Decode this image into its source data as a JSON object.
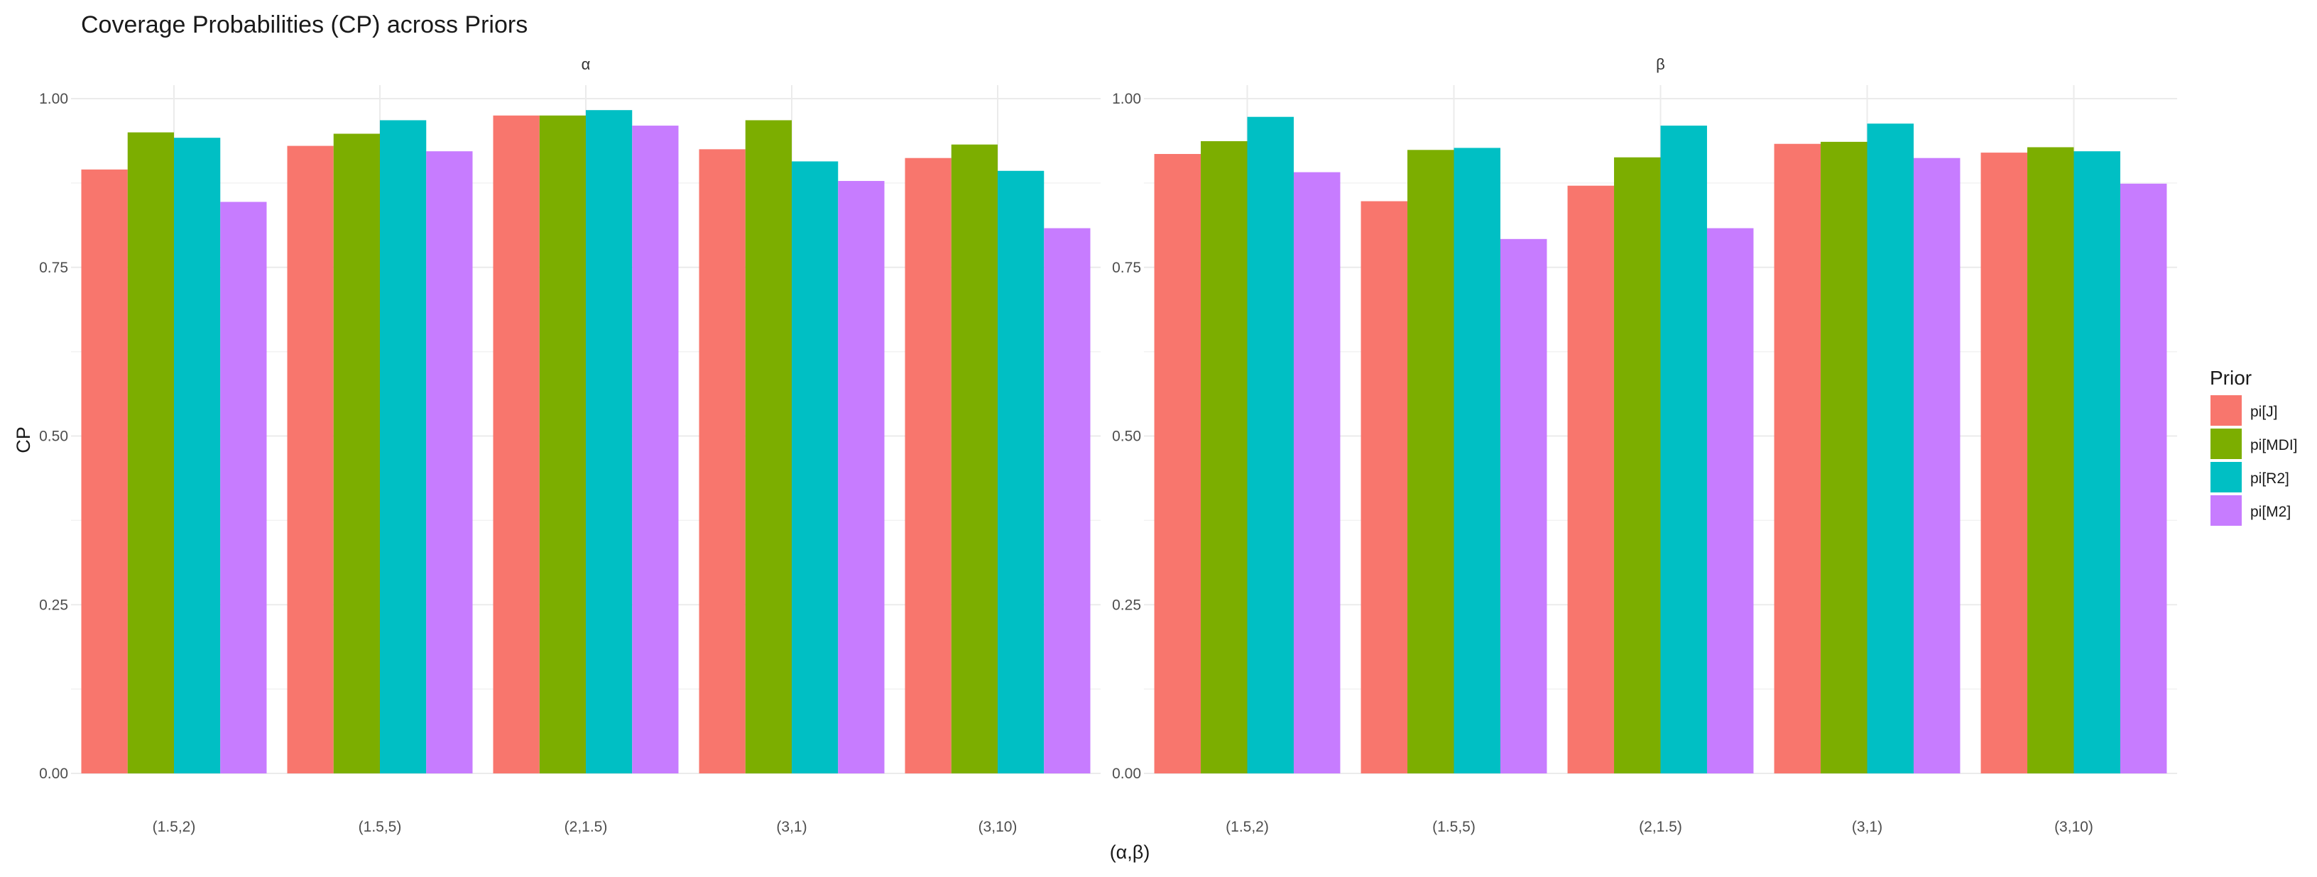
{
  "chart_data": {
    "type": "bar",
    "title": "Coverage Probabilities (CP) across Priors",
    "xlabel": "(α,β)",
    "ylabel": "CP",
    "ylim": [
      0,
      1.02
    ],
    "yticks": [
      "0.00",
      "0.25",
      "0.50",
      "0.75",
      "1.00"
    ],
    "categories": [
      "(1.5,2)",
      "(1.5,5)",
      "(2,1.5)",
      "(3,1)",
      "(3,10)"
    ],
    "legend": {
      "title": "Prior",
      "position": "right",
      "entries": [
        {
          "name": "pi[J]",
          "color": "#F8766D"
        },
        {
          "name": "pi[MDI]",
          "color": "#7CAE00"
        },
        {
          "name": "pi[R2]",
          "color": "#00BFC4"
        },
        {
          "name": "pi[M2]",
          "color": "#C77CFF"
        }
      ]
    },
    "panels": [
      {
        "label": "α",
        "series": [
          {
            "name": "pi[J]",
            "values": [
              0.895,
              0.93,
              0.975,
              0.925,
              0.912
            ]
          },
          {
            "name": "pi[MDI]",
            "values": [
              0.95,
              0.948,
              0.975,
              0.968,
              0.932
            ]
          },
          {
            "name": "pi[R2]",
            "values": [
              0.942,
              0.968,
              0.983,
              0.907,
              0.893
            ]
          },
          {
            "name": "pi[M2]",
            "values": [
              0.847,
              0.922,
              0.96,
              0.878,
              0.808
            ]
          }
        ]
      },
      {
        "label": "β",
        "series": [
          {
            "name": "pi[J]",
            "values": [
              0.918,
              0.848,
              0.871,
              0.933,
              0.92
            ]
          },
          {
            "name": "pi[MDI]",
            "values": [
              0.937,
              0.924,
              0.913,
              0.936,
              0.928
            ]
          },
          {
            "name": "pi[R2]",
            "values": [
              0.973,
              0.927,
              0.96,
              0.963,
              0.922
            ]
          },
          {
            "name": "pi[M2]",
            "values": [
              0.891,
              0.792,
              0.808,
              0.912,
              0.874
            ]
          }
        ]
      }
    ]
  }
}
